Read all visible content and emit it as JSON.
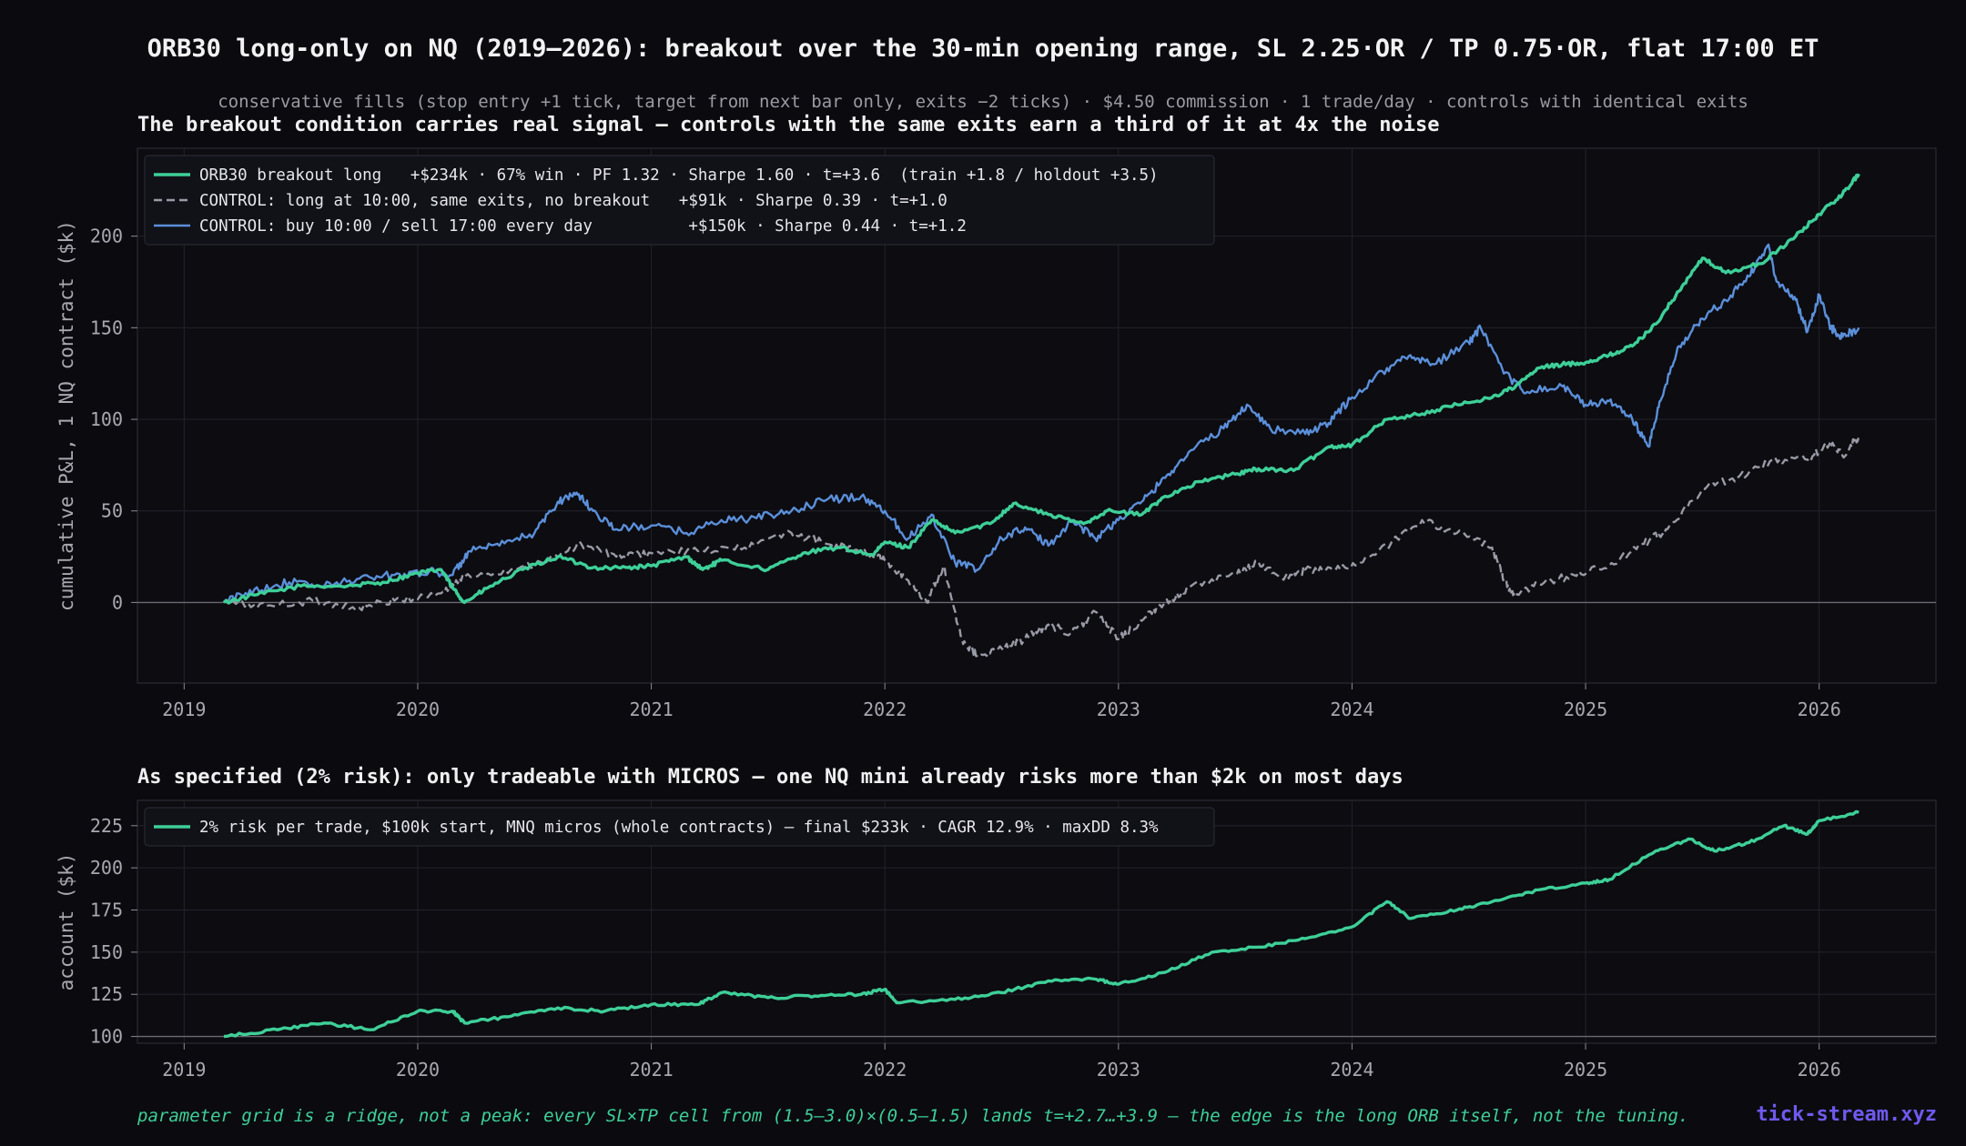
{
  "title": "ORB30 long-only on NQ (2019–2026): breakout over the 30-min opening range, SL 2.25·OR / TP 0.75·OR, flat 17:00 ET",
  "subtitle": "conservative fills (stop entry +1 tick, target from next bar only, exits −2 ticks) · $4.50 commission · 1 trade/day · controls with identical exits",
  "footer_note": "parameter grid is a ridge, not a peak: every SL×TP cell from (1.5–3.0)×(0.5–1.5) lands t=+2.7…+3.9 — the edge is the long ORB itself, not the tuning.",
  "brand": "tick-stream.xyz",
  "colors": {
    "background": "#0b0b0f",
    "orb": "#3ecf98",
    "control_flat": "#9a9aa6",
    "control_daily": "#5b8fd9",
    "grid": "#22222a"
  },
  "chart_data": [
    {
      "type": "line",
      "title": "The breakout condition carries real signal — controls with the same exits earn a third of it at 4x the noise",
      "xlabel": "",
      "ylabel": "cumulative P&L, 1 NQ contract ($k)",
      "xlim": [
        2018.8,
        2026.5
      ],
      "ylim": [
        -44,
        248
      ],
      "x_ticks": [
        2019,
        2020,
        2021,
        2022,
        2023,
        2024,
        2025,
        2026
      ],
      "y_ticks": [
        0,
        50,
        100,
        150,
        200
      ],
      "grid": true,
      "legend_position": "top-left",
      "series": [
        {
          "name": "ORB30 breakout long   +$234k · 67% win · PF 1.32 · Sharpe 1.60 · t=+3.6  (train +1.8 / holdout +3.5)",
          "color": "#3ecf98",
          "style": "solid",
          "width": 3.4,
          "points": [
            [
              2019.17,
              0
            ],
            [
              2019.3,
              4
            ],
            [
              2019.5,
              9
            ],
            [
              2019.7,
              9
            ],
            [
              2019.85,
              11
            ],
            [
              2020.0,
              16
            ],
            [
              2020.1,
              18
            ],
            [
              2020.15,
              8
            ],
            [
              2020.2,
              0
            ],
            [
              2020.3,
              8
            ],
            [
              2020.45,
              18
            ],
            [
              2020.6,
              25
            ],
            [
              2020.75,
              19
            ],
            [
              2020.9,
              19
            ],
            [
              2021.0,
              20
            ],
            [
              2021.15,
              25
            ],
            [
              2021.22,
              18
            ],
            [
              2021.3,
              23
            ],
            [
              2021.5,
              18
            ],
            [
              2021.65,
              27
            ],
            [
              2021.8,
              30
            ],
            [
              2021.95,
              26
            ],
            [
              2022.0,
              33
            ],
            [
              2022.1,
              30
            ],
            [
              2022.2,
              45
            ],
            [
              2022.3,
              38
            ],
            [
              2022.45,
              43
            ],
            [
              2022.55,
              54
            ],
            [
              2022.7,
              48
            ],
            [
              2022.85,
              43
            ],
            [
              2022.95,
              50
            ],
            [
              2023.1,
              48
            ],
            [
              2023.2,
              58
            ],
            [
              2023.35,
              66
            ],
            [
              2023.5,
              70
            ],
            [
              2023.6,
              73
            ],
            [
              2023.75,
              72
            ],
            [
              2023.9,
              85
            ],
            [
              2024.0,
              86
            ],
            [
              2024.15,
              100
            ],
            [
              2024.3,
              103
            ],
            [
              2024.45,
              108
            ],
            [
              2024.6,
              112
            ],
            [
              2024.7,
              118
            ],
            [
              2024.8,
              128
            ],
            [
              2024.9,
              130
            ],
            [
              2025.0,
              131
            ],
            [
              2025.1,
              135
            ],
            [
              2025.2,
              140
            ],
            [
              2025.3,
              152
            ],
            [
              2025.4,
              170
            ],
            [
              2025.5,
              188
            ],
            [
              2025.6,
              180
            ],
            [
              2025.75,
              185
            ],
            [
              2025.9,
              200
            ],
            [
              2026.0,
              212
            ],
            [
              2026.1,
              223
            ],
            [
              2026.17,
              234
            ]
          ]
        },
        {
          "name": "CONTROL: long at 10:00, same exits, no breakout   +$91k · Sharpe 0.39 · t=+1.0",
          "color": "#9a9aa6",
          "style": "dashed",
          "width": 2.4,
          "points": [
            [
              2019.17,
              0
            ],
            [
              2019.35,
              -2
            ],
            [
              2019.55,
              1
            ],
            [
              2019.75,
              -3
            ],
            [
              2019.9,
              1
            ],
            [
              2020.1,
              5
            ],
            [
              2020.2,
              14
            ],
            [
              2020.4,
              18
            ],
            [
              2020.6,
              25
            ],
            [
              2020.7,
              32
            ],
            [
              2020.85,
              25
            ],
            [
              2021.0,
              27
            ],
            [
              2021.2,
              28
            ],
            [
              2021.4,
              30
            ],
            [
              2021.6,
              38
            ],
            [
              2021.75,
              32
            ],
            [
              2021.9,
              28
            ],
            [
              2022.0,
              23
            ],
            [
              2022.1,
              12
            ],
            [
              2022.18,
              0
            ],
            [
              2022.25,
              20
            ],
            [
              2022.33,
              -20
            ],
            [
              2022.4,
              -30
            ],
            [
              2022.5,
              -25
            ],
            [
              2022.6,
              -20
            ],
            [
              2022.7,
              -12
            ],
            [
              2022.8,
              -17
            ],
            [
              2022.9,
              -5
            ],
            [
              2023.0,
              -20
            ],
            [
              2023.1,
              -10
            ],
            [
              2023.2,
              0
            ],
            [
              2023.3,
              8
            ],
            [
              2023.5,
              15
            ],
            [
              2023.6,
              22
            ],
            [
              2023.7,
              13
            ],
            [
              2023.8,
              18
            ],
            [
              2023.95,
              18
            ],
            [
              2024.1,
              26
            ],
            [
              2024.3,
              45
            ],
            [
              2024.45,
              38
            ],
            [
              2024.6,
              30
            ],
            [
              2024.65,
              12
            ],
            [
              2024.7,
              3
            ],
            [
              2024.8,
              10
            ],
            [
              2024.95,
              15
            ],
            [
              2025.1,
              20
            ],
            [
              2025.25,
              32
            ],
            [
              2025.35,
              40
            ],
            [
              2025.5,
              62
            ],
            [
              2025.65,
              68
            ],
            [
              2025.8,
              78
            ],
            [
              2025.95,
              78
            ],
            [
              2026.05,
              88
            ],
            [
              2026.1,
              80
            ],
            [
              2026.17,
              91
            ]
          ]
        },
        {
          "name": "CONTROL: buy 10:00 / sell 17:00 every day          +$150k · Sharpe 0.44 · t=+1.2",
          "color": "#5b8fd9",
          "style": "solid",
          "width": 2.4,
          "points": [
            [
              2019.17,
              0
            ],
            [
              2019.3,
              7
            ],
            [
              2019.45,
              11
            ],
            [
              2019.6,
              9
            ],
            [
              2019.75,
              13
            ],
            [
              2019.9,
              15
            ],
            [
              2020.05,
              17
            ],
            [
              2020.15,
              15
            ],
            [
              2020.22,
              28
            ],
            [
              2020.35,
              31
            ],
            [
              2020.5,
              38
            ],
            [
              2020.6,
              55
            ],
            [
              2020.68,
              60
            ],
            [
              2020.75,
              50
            ],
            [
              2020.85,
              40
            ],
            [
              2021.0,
              42
            ],
            [
              2021.15,
              38
            ],
            [
              2021.3,
              45
            ],
            [
              2021.45,
              46
            ],
            [
              2021.6,
              50
            ],
            [
              2021.75,
              56
            ],
            [
              2021.9,
              58
            ],
            [
              2022.0,
              50
            ],
            [
              2022.1,
              35
            ],
            [
              2022.2,
              48
            ],
            [
              2022.3,
              22
            ],
            [
              2022.4,
              18
            ],
            [
              2022.5,
              35
            ],
            [
              2022.6,
              41
            ],
            [
              2022.7,
              31
            ],
            [
              2022.8,
              45
            ],
            [
              2022.9,
              35
            ],
            [
              2023.0,
              45
            ],
            [
              2023.1,
              55
            ],
            [
              2023.2,
              68
            ],
            [
              2023.3,
              82
            ],
            [
              2023.45,
              95
            ],
            [
              2023.55,
              108
            ],
            [
              2023.65,
              95
            ],
            [
              2023.8,
              92
            ],
            [
              2023.9,
              98
            ],
            [
              2024.0,
              112
            ],
            [
              2024.15,
              128
            ],
            [
              2024.25,
              135
            ],
            [
              2024.35,
              130
            ],
            [
              2024.5,
              142
            ],
            [
              2024.55,
              150
            ],
            [
              2024.65,
              125
            ],
            [
              2024.75,
              115
            ],
            [
              2024.9,
              118
            ],
            [
              2025.0,
              108
            ],
            [
              2025.1,
              110
            ],
            [
              2025.2,
              100
            ],
            [
              2025.27,
              85
            ],
            [
              2025.32,
              110
            ],
            [
              2025.4,
              140
            ],
            [
              2025.5,
              155
            ],
            [
              2025.6,
              165
            ],
            [
              2025.7,
              178
            ],
            [
              2025.78,
              195
            ],
            [
              2025.82,
              175
            ],
            [
              2025.9,
              165
            ],
            [
              2025.95,
              148
            ],
            [
              2026.0,
              168
            ],
            [
              2026.05,
              150
            ],
            [
              2026.1,
              145
            ],
            [
              2026.17,
              150
            ]
          ]
        }
      ]
    },
    {
      "type": "line",
      "title": "As specified (2% risk): only tradeable with MICROS — one NQ mini already risks more than $2k on most days",
      "xlabel": "",
      "ylabel": "account ($k)",
      "xlim": [
        2018.8,
        2026.5
      ],
      "ylim": [
        96,
        240
      ],
      "x_ticks": [
        2019,
        2020,
        2021,
        2022,
        2023,
        2024,
        2025,
        2026
      ],
      "y_ticks": [
        100,
        125,
        150,
        175,
        200,
        225
      ],
      "grid": true,
      "legend_position": "top-left",
      "series": [
        {
          "name": "2% risk per trade, $100k start, MNQ micros (whole contracts) — final $233k · CAGR 12.9% · maxDD 8.3%",
          "color": "#3ecf98",
          "style": "solid",
          "width": 3.4,
          "points": [
            [
              2019.17,
              100
            ],
            [
              2019.4,
              104
            ],
            [
              2019.6,
              108
            ],
            [
              2019.8,
              104
            ],
            [
              2020.0,
              115
            ],
            [
              2020.15,
              115
            ],
            [
              2020.2,
              108
            ],
            [
              2020.4,
              112
            ],
            [
              2020.6,
              117
            ],
            [
              2020.8,
              115
            ],
            [
              2021.0,
              119
            ],
            [
              2021.2,
              119
            ],
            [
              2021.3,
              126
            ],
            [
              2021.5,
              123
            ],
            [
              2021.7,
              124
            ],
            [
              2021.9,
              125
            ],
            [
              2022.0,
              128
            ],
            [
              2022.05,
              120
            ],
            [
              2022.3,
              122
            ],
            [
              2022.5,
              126
            ],
            [
              2022.7,
              133
            ],
            [
              2022.9,
              134
            ],
            [
              2023.0,
              131
            ],
            [
              2023.2,
              138
            ],
            [
              2023.4,
              150
            ],
            [
              2023.6,
              153
            ],
            [
              2023.8,
              158
            ],
            [
              2024.0,
              165
            ],
            [
              2024.15,
              180
            ],
            [
              2024.25,
              170
            ],
            [
              2024.45,
              175
            ],
            [
              2024.6,
              180
            ],
            [
              2024.8,
              187
            ],
            [
              2025.0,
              191
            ],
            [
              2025.1,
              193
            ],
            [
              2025.3,
              210
            ],
            [
              2025.45,
              217
            ],
            [
              2025.55,
              210
            ],
            [
              2025.7,
              215
            ],
            [
              2025.85,
              225
            ],
            [
              2025.95,
              220
            ],
            [
              2026.0,
              228
            ],
            [
              2026.17,
              233
            ]
          ]
        }
      ]
    }
  ]
}
